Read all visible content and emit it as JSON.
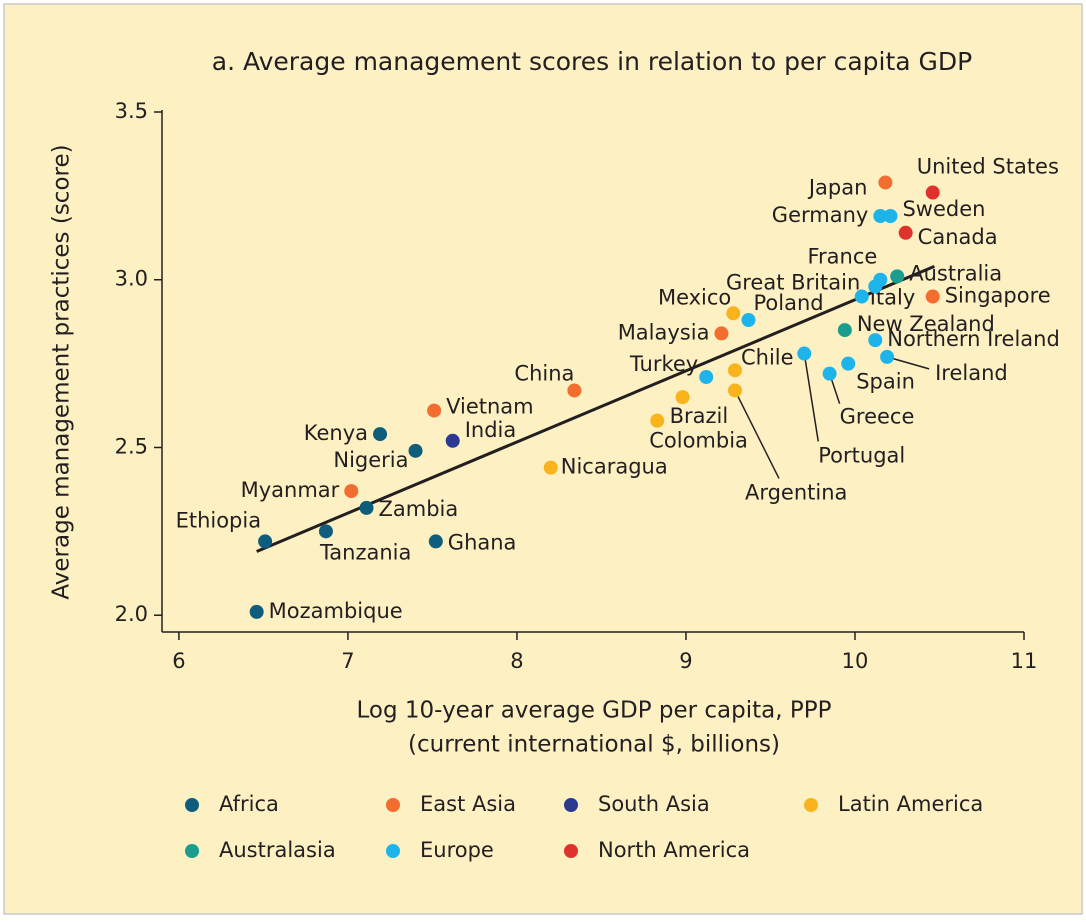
{
  "chart_data": {
    "type": "scatter",
    "title": "a. Average management scores in relation to per capita GDP",
    "x_label": [
      "Log 10-year average GDP per capita, PPP",
      "(current international $, billions)"
    ],
    "y_label": "Average management practices (score)",
    "xlim": [
      5.9,
      11
    ],
    "ylim": [
      1.95,
      3.5
    ],
    "xticks": [
      6,
      7,
      8,
      9,
      10,
      11
    ],
    "yticks": [
      {
        "value": 2.0,
        "label": "2.0"
      },
      {
        "value": 2.5,
        "label": "2.5"
      },
      {
        "value": 3.0,
        "label": "3.0"
      },
      {
        "value": 3.5,
        "label": "3.5"
      }
    ],
    "series": [
      {
        "name": "Africa",
        "color": "#0f5d7c",
        "labels": [
          "Mozambique",
          "Ethiopia",
          "Tanzania",
          "Zambia",
          "Kenya",
          "Nigeria",
          "Ghana"
        ],
        "x": [
          6.46,
          6.51,
          6.87,
          7.11,
          7.19,
          7.4,
          7.52
        ],
        "values": [
          2.01,
          2.22,
          2.25,
          2.32,
          2.54,
          2.49,
          2.22
        ]
      },
      {
        "name": "East Asia",
        "color": "#f26d2f",
        "labels": [
          "Myanmar",
          "Vietnam",
          "China",
          "Malaysia",
          "Japan",
          "Singapore"
        ],
        "x": [
          7.02,
          7.51,
          8.34,
          9.21,
          10.18,
          10.46
        ],
        "values": [
          2.37,
          2.61,
          2.67,
          2.84,
          3.29,
          2.95
        ]
      },
      {
        "name": "South Asia",
        "color": "#2b3990",
        "labels": [
          "India"
        ],
        "x": [
          7.62
        ],
        "values": [
          2.52
        ]
      },
      {
        "name": "Latin America",
        "color": "#f9b31c",
        "labels": [
          "Nicaragua",
          "Colombia",
          "Brazil",
          "Argentina",
          "Chile",
          "Mexico"
        ],
        "x": [
          8.2,
          8.83,
          8.98,
          9.29,
          9.29,
          9.28
        ],
        "values": [
          2.44,
          2.58,
          2.65,
          2.67,
          2.73,
          2.9
        ]
      },
      {
        "name": "Australasia",
        "color": "#1a9c8e",
        "labels": [
          "New Zealand",
          "Australia"
        ],
        "x": [
          9.94,
          10.25
        ],
        "values": [
          2.85,
          3.01
        ]
      },
      {
        "name": "Europe",
        "color": "#1db4ec",
        "labels": [
          "Turkey",
          "Poland",
          "Portugal",
          "Greece",
          "Spain",
          "Ireland",
          "Northern Ireland",
          "Italy",
          "Great Britain",
          "France",
          "Germany",
          "Sweden"
        ],
        "x": [
          9.12,
          9.37,
          9.7,
          9.85,
          9.96,
          10.19,
          10.12,
          10.04,
          10.12,
          10.15,
          10.15,
          10.21
        ],
        "values": [
          2.71,
          2.88,
          2.78,
          2.72,
          2.75,
          2.77,
          2.82,
          2.95,
          2.98,
          3.0,
          3.19,
          3.19
        ]
      },
      {
        "name": "North America",
        "color": "#e0322c",
        "labels": [
          "United States",
          "Canada"
        ],
        "x": [
          10.46,
          10.3
        ],
        "values": [
          3.26,
          3.14
        ]
      }
    ],
    "trend_line": {
      "x": [
        6.46,
        10.47
      ],
      "values": [
        2.19,
        3.04
      ]
    }
  }
}
